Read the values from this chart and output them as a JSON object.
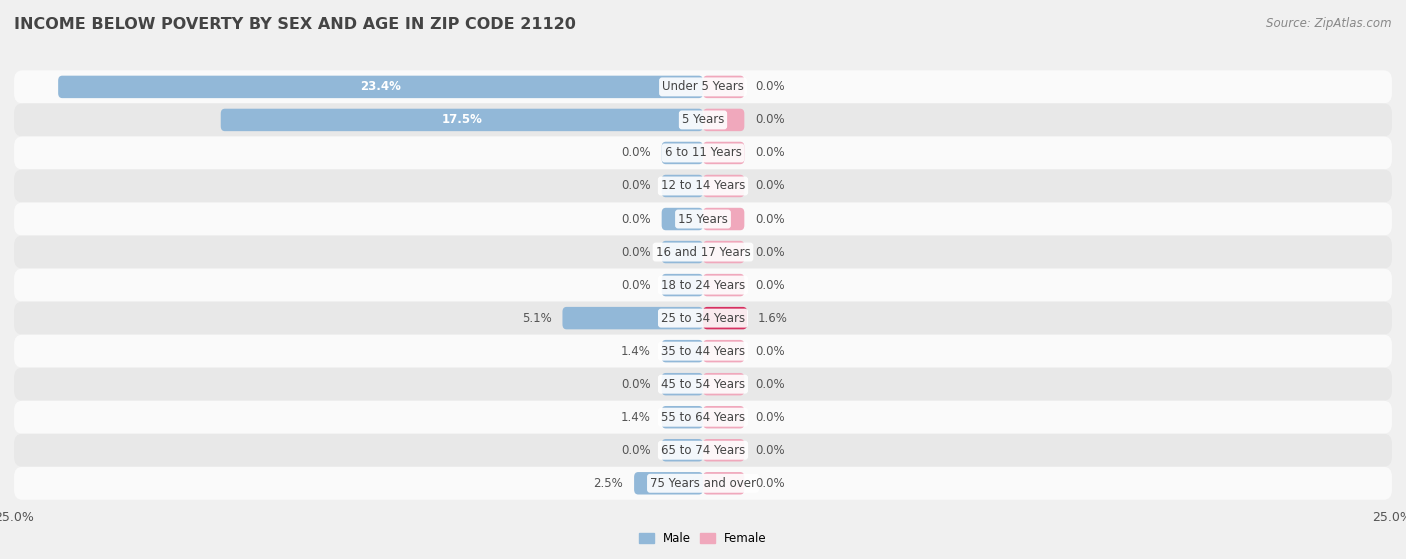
{
  "title": "INCOME BELOW POVERTY BY SEX AND AGE IN ZIP CODE 21120",
  "source": "Source: ZipAtlas.com",
  "categories": [
    "Under 5 Years",
    "5 Years",
    "6 to 11 Years",
    "12 to 14 Years",
    "15 Years",
    "16 and 17 Years",
    "18 to 24 Years",
    "25 to 34 Years",
    "35 to 44 Years",
    "45 to 54 Years",
    "55 to 64 Years",
    "65 to 74 Years",
    "75 Years and over"
  ],
  "male_values": [
    23.4,
    17.5,
    0.0,
    0.0,
    0.0,
    0.0,
    0.0,
    5.1,
    1.4,
    0.0,
    1.4,
    0.0,
    2.5
  ],
  "female_values": [
    0.0,
    0.0,
    0.0,
    0.0,
    0.0,
    0.0,
    0.0,
    1.6,
    0.0,
    0.0,
    0.0,
    0.0,
    0.0
  ],
  "male_color": "#92b8d8",
  "female_color": "#f0a8bc",
  "female_highlight_color": "#d63060",
  "female_highlight_index": 7,
  "title_fontsize": 11.5,
  "source_fontsize": 8.5,
  "label_fontsize": 8.5,
  "cat_fontsize": 8.5,
  "axis_label_fontsize": 9,
  "xlim": 25.0,
  "min_bar": 1.5,
  "background_color": "#f0f0f0",
  "row_bg_light": "#fafafa",
  "row_bg_dark": "#e8e8e8",
  "legend_male_color": "#92b8d8",
  "legend_female_color": "#f0a8bc",
  "title_color": "#444444",
  "label_color": "#555555",
  "source_color": "#888888"
}
